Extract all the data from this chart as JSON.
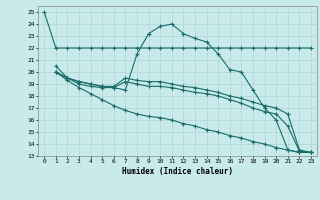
{
  "xlabel": "Humidex (Indice chaleur)",
  "xlim": [
    -0.5,
    23.5
  ],
  "ylim": [
    13,
    25.5
  ],
  "yticks": [
    13,
    14,
    15,
    16,
    17,
    18,
    19,
    20,
    21,
    22,
    23,
    24,
    25
  ],
  "xticks": [
    0,
    1,
    2,
    3,
    4,
    5,
    6,
    7,
    8,
    9,
    10,
    11,
    12,
    13,
    14,
    15,
    16,
    17,
    18,
    19,
    20,
    21,
    22,
    23
  ],
  "background_color": "#c8eaea",
  "grid_color": "#b0d4d4",
  "line_color": "#1a6b6b",
  "line1_x": [
    0,
    1,
    2,
    3,
    4,
    5,
    6,
    7,
    8,
    9,
    10,
    11,
    12,
    13,
    14,
    15,
    16,
    17,
    18,
    19,
    20,
    21,
    22,
    23
  ],
  "line1_y": [
    25,
    22,
    22,
    22,
    22,
    22,
    22,
    22,
    22,
    22,
    22,
    22,
    22,
    22,
    22,
    22,
    22,
    22,
    22,
    22,
    22,
    22,
    22,
    22
  ],
  "line2_x": [
    1,
    2,
    3,
    4,
    5,
    6,
    7,
    8,
    9,
    10,
    11,
    12,
    13,
    14,
    15,
    16,
    17,
    18,
    19,
    20,
    21,
    22,
    23
  ],
  "line2_y": [
    20.5,
    19.5,
    19.0,
    18.8,
    18.7,
    18.7,
    18.5,
    21.5,
    23.2,
    23.8,
    24.0,
    23.2,
    22.8,
    22.5,
    21.5,
    20.2,
    20.0,
    18.5,
    17.0,
    16.0,
    13.5,
    13.3,
    13.3
  ],
  "line3_x": [
    1,
    2,
    3,
    4,
    5,
    6,
    7,
    8,
    9,
    10,
    11,
    12,
    13,
    14,
    15,
    16,
    17,
    18,
    19,
    20,
    21,
    22,
    23
  ],
  "line3_y": [
    20.0,
    19.5,
    19.2,
    19.0,
    18.8,
    18.8,
    19.5,
    19.3,
    19.2,
    19.2,
    19.0,
    18.8,
    18.7,
    18.5,
    18.3,
    18.0,
    17.8,
    17.5,
    17.2,
    17.0,
    16.5,
    13.5,
    13.3
  ],
  "line4_x": [
    1,
    2,
    3,
    4,
    5,
    6,
    7,
    8,
    9,
    10,
    11,
    12,
    13,
    14,
    15,
    16,
    17,
    18,
    19,
    20,
    21,
    22,
    23
  ],
  "line4_y": [
    20.0,
    19.5,
    19.2,
    19.0,
    18.8,
    18.7,
    19.2,
    19.0,
    18.8,
    18.8,
    18.7,
    18.5,
    18.3,
    18.2,
    18.0,
    17.7,
    17.4,
    17.0,
    16.7,
    16.5,
    15.5,
    13.4,
    13.3
  ],
  "line5_x": [
    1,
    2,
    3,
    4,
    5,
    6,
    7,
    8,
    9,
    10,
    11,
    12,
    13,
    14,
    15,
    16,
    17,
    18,
    19,
    20,
    21,
    22,
    23
  ],
  "line5_y": [
    20.0,
    19.3,
    18.7,
    18.2,
    17.7,
    17.2,
    16.8,
    16.5,
    16.3,
    16.2,
    16.0,
    15.7,
    15.5,
    15.2,
    15.0,
    14.7,
    14.5,
    14.2,
    14.0,
    13.7,
    13.5,
    13.3,
    13.3
  ]
}
